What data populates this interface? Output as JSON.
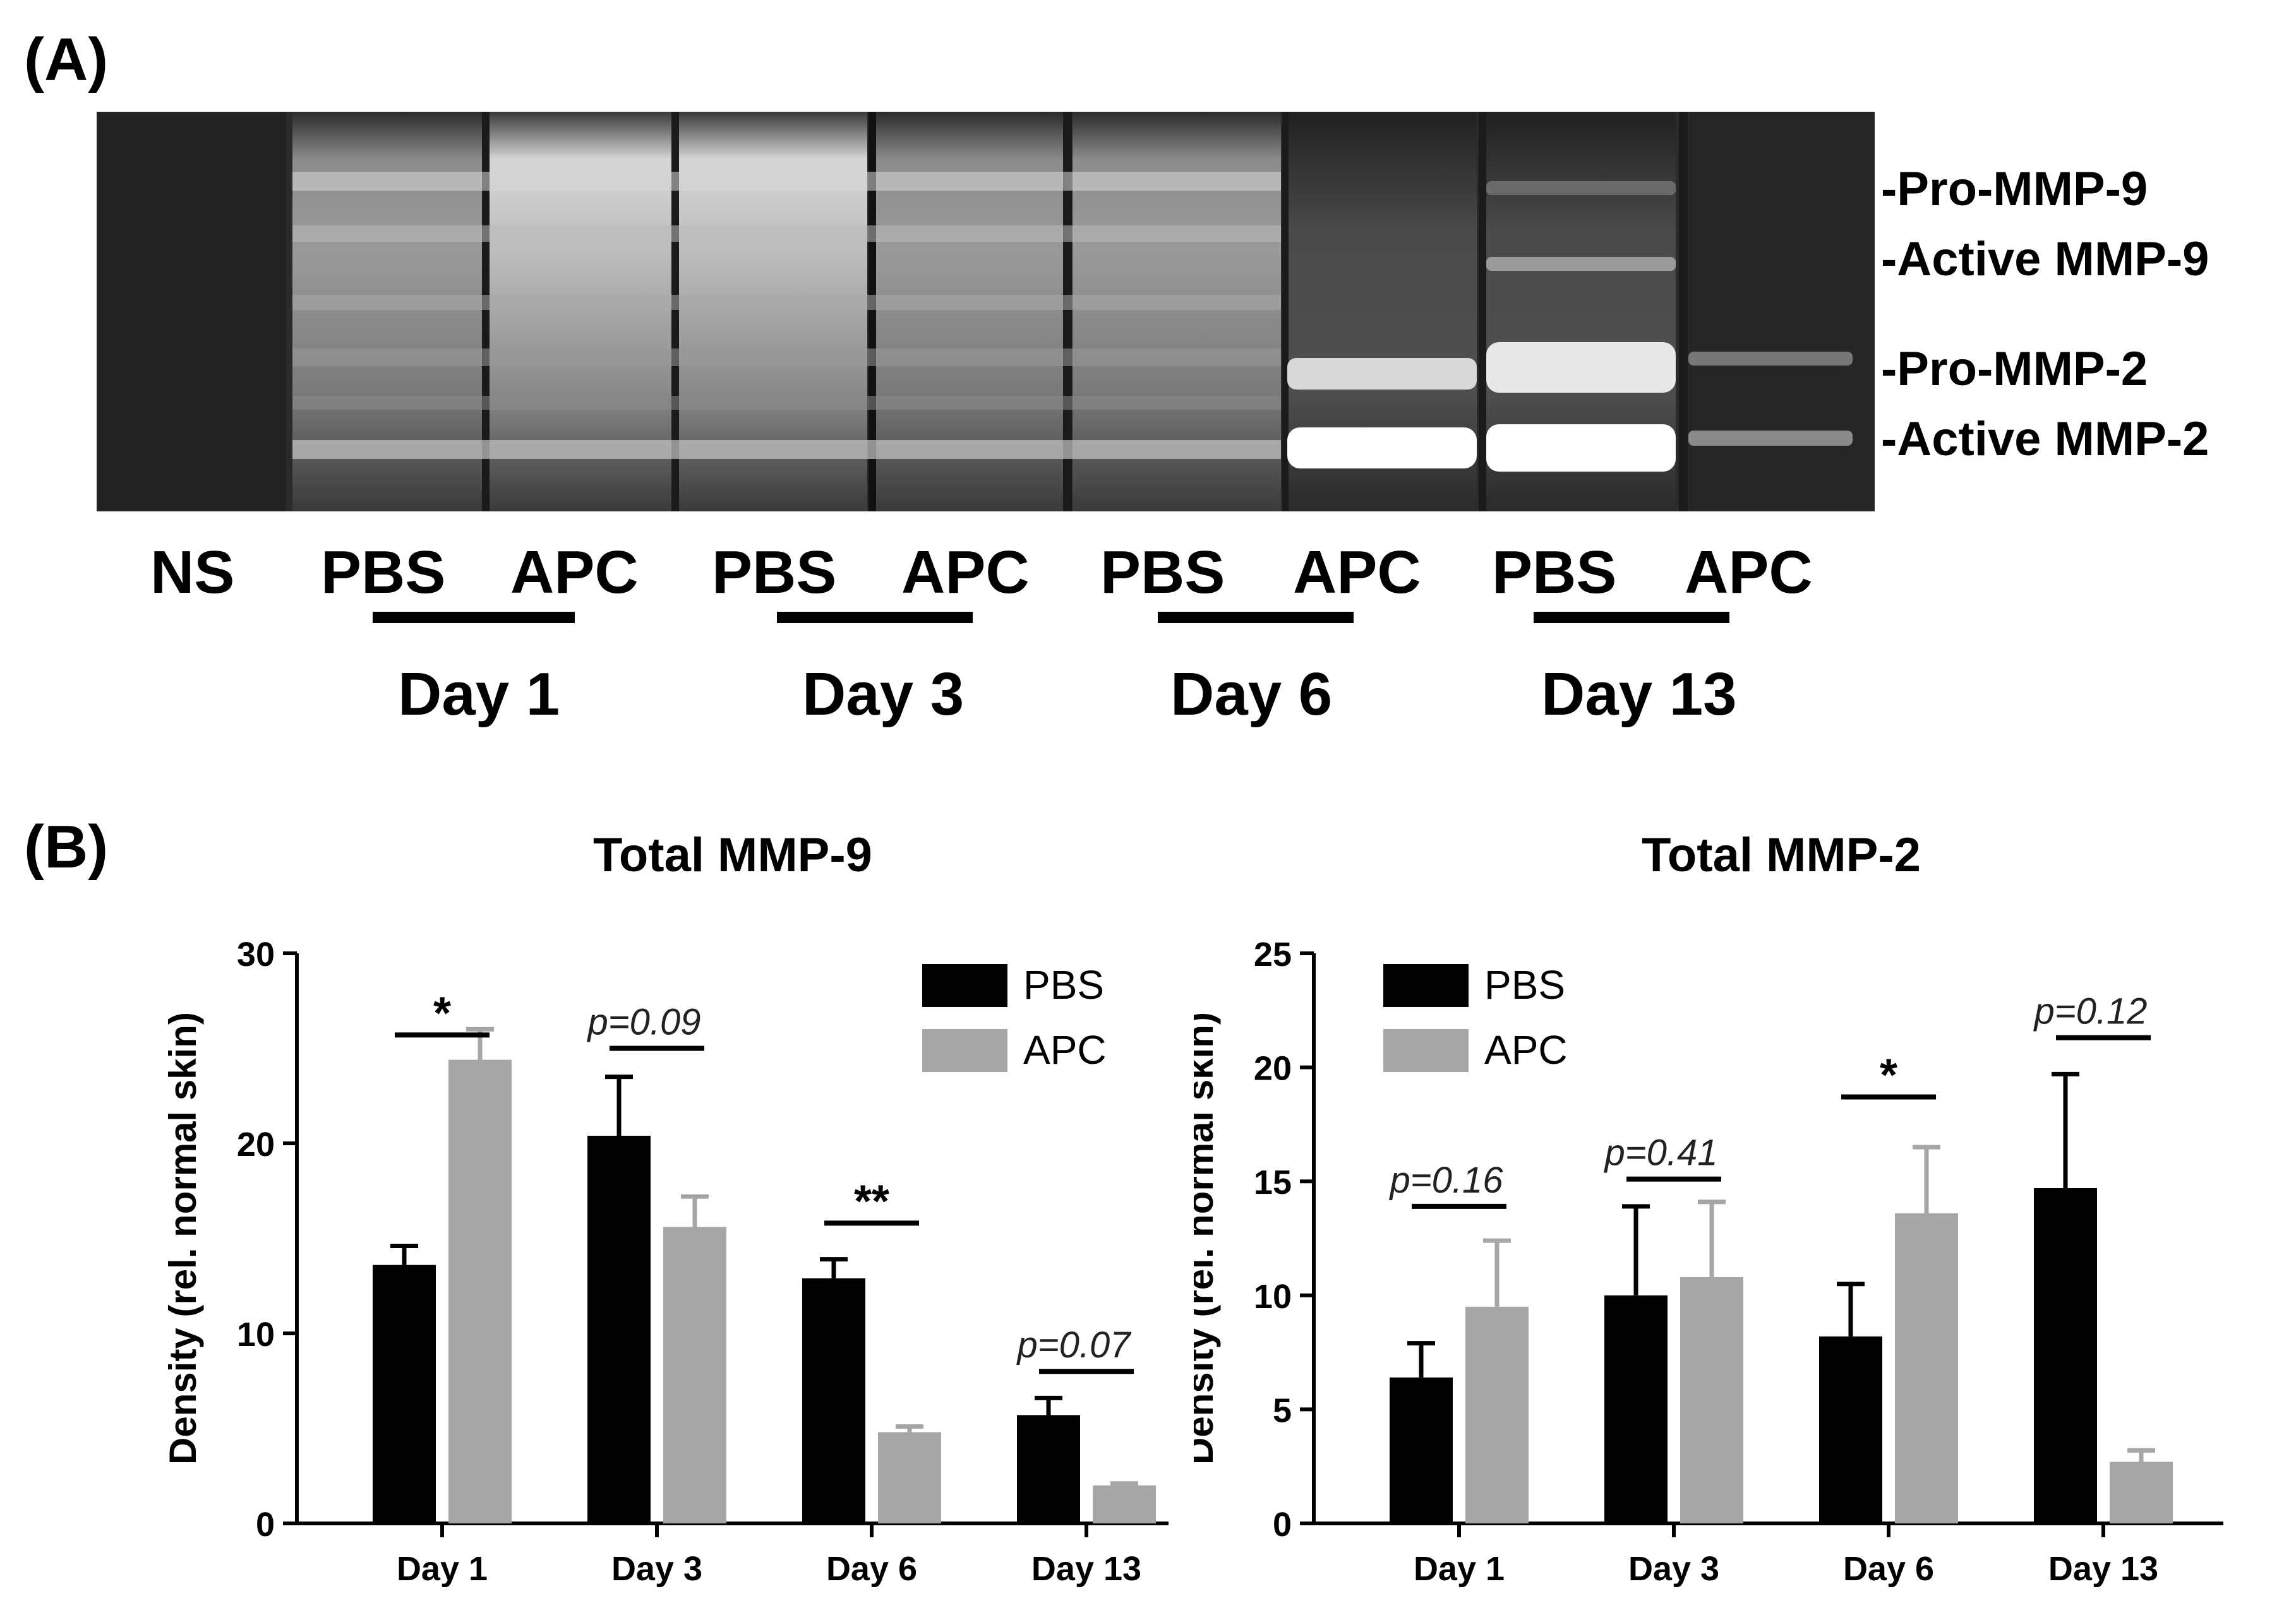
{
  "panel_a": {
    "letter": "(A)",
    "band_labels": [
      "-Pro-MMP-9",
      "-Active MMP-9",
      "-Pro-MMP-2",
      "-Active MMP-2"
    ],
    "lane_labels": [
      "NS",
      "PBS",
      "APC",
      "PBS",
      "APC",
      "PBS",
      "APC",
      "PBS",
      "APC"
    ],
    "day_labels": [
      "Day 1",
      "Day 3",
      "Day 6",
      "Day 13"
    ]
  },
  "panel_b": {
    "letter": "(B)"
  },
  "chart_data": [
    {
      "type": "bar",
      "title": "Total MMP-9",
      "xlabel": "",
      "ylabel": "Density (rel. normal skin)",
      "ylim": [
        0,
        30
      ],
      "yticks": [
        "0",
        "10",
        "20",
        "30"
      ],
      "categories": [
        "Day 1",
        "Day 3",
        "Day 6",
        "Day 13"
      ],
      "series": [
        {
          "name": "PBS",
          "color": "#000000",
          "values": [
            13.6,
            20.4,
            12.9,
            5.7
          ],
          "errors": [
            1.0,
            3.1,
            1.0,
            0.9
          ]
        },
        {
          "name": "APC",
          "color": "#a6a6a6",
          "values": [
            24.4,
            15.6,
            4.8,
            2.0
          ],
          "errors": [
            1.6,
            1.6,
            0.3,
            0.1
          ]
        }
      ],
      "annotations": [
        "*",
        "p=0.09",
        "**",
        "p=0.07"
      ],
      "legend": "top-right"
    },
    {
      "type": "bar",
      "title": "Total MMP-2",
      "xlabel": "",
      "ylabel": "Density (rel. normal skin)",
      "ylim": [
        0,
        25
      ],
      "yticks": [
        "0",
        "5",
        "10",
        "15",
        "20",
        "25"
      ],
      "categories": [
        "Day 1",
        "Day 3",
        "Day 6",
        "Day 13"
      ],
      "series": [
        {
          "name": "PBS",
          "color": "#000000",
          "values": [
            6.4,
            10.0,
            8.2,
            14.7
          ],
          "errors": [
            1.5,
            3.9,
            2.3,
            5.0
          ]
        },
        {
          "name": "APC",
          "color": "#a6a6a6",
          "values": [
            9.5,
            10.8,
            13.6,
            2.7
          ],
          "errors": [
            2.9,
            3.3,
            2.9,
            0.5
          ]
        }
      ],
      "annotations": [
        "p=0.16",
        "p=0.41",
        "*",
        "p=0.12"
      ],
      "legend": "top-left"
    }
  ]
}
